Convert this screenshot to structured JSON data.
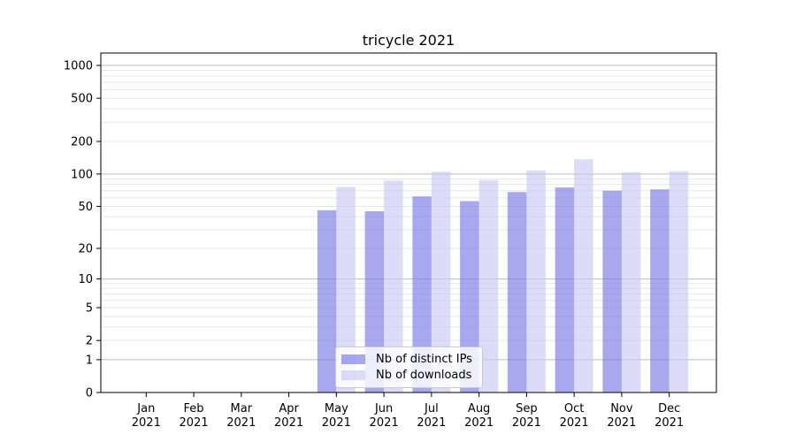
{
  "chart_data": {
    "type": "bar",
    "title": "tricycle 2021",
    "year": "2021",
    "months": [
      "Jan",
      "Feb",
      "Mar",
      "Apr",
      "May",
      "Jun",
      "Jul",
      "Aug",
      "Sep",
      "Oct",
      "Nov",
      "Dec"
    ],
    "series": [
      {
        "key": "distinct-ips",
        "name": "Nb of distinct IPs",
        "color": "rgba(115,115,229,0.62)",
        "values": [
          0,
          0,
          0,
          0,
          46,
          45,
          62,
          56,
          68,
          75,
          70,
          72
        ]
      },
      {
        "key": "downloads",
        "name": "Nb of downloads",
        "color": "rgba(199,199,244,0.62)",
        "values": [
          0,
          0,
          0,
          0,
          76,
          87,
          105,
          88,
          108,
          137,
          104,
          106
        ]
      }
    ],
    "y_ticks": [
      0,
      1,
      2,
      5,
      10,
      20,
      50,
      100,
      200,
      500,
      1000
    ],
    "ylim": [
      0,
      1300
    ],
    "yscale": "log10(1+y)",
    "grid": {
      "show": true,
      "major_at": [
        1,
        10,
        100,
        1000
      ]
    },
    "legend": {
      "position": "lower center"
    },
    "colors": {
      "grid_major": "#bdbdbd",
      "grid_minor": "#e8e8e8",
      "axis": "#000000",
      "text": "#000000",
      "legend_border": "#cccccc",
      "legend_bg": "rgba(255,255,255,0.8)"
    }
  }
}
